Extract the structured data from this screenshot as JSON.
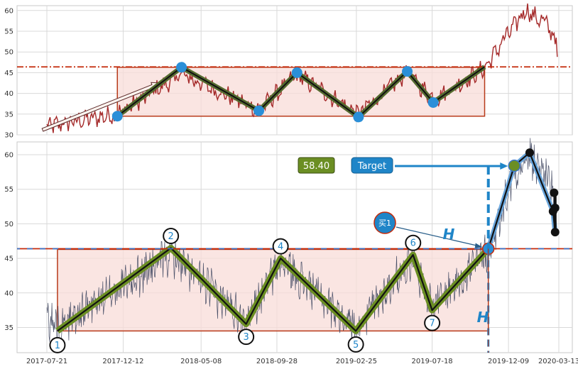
{
  "chart_data": [
    {
      "type": "line",
      "panel": "top",
      "ylim": [
        30,
        62
      ],
      "y_ticks": [
        30,
        35,
        40,
        45,
        50,
        55,
        60
      ],
      "grid": true,
      "resistance_level": 46.4,
      "box": {
        "x_start": "2017-12-01",
        "x_end": "2019-10-25",
        "y_low": 34.5,
        "y_high": 46.3
      },
      "zigzag": [
        {
          "x": "2017-12-01",
          "y": 34.5
        },
        {
          "x": "2018-04-01",
          "y": 46.3
        },
        {
          "x": "2018-08-25",
          "y": 35.8
        },
        {
          "x": "2018-11-05",
          "y": 45.0
        },
        {
          "x": "2019-03-01",
          "y": 34.3
        },
        {
          "x": "2019-06-01",
          "y": 45.3
        },
        {
          "x": "2019-07-20",
          "y": 37.8
        },
        {
          "x": "2019-10-25",
          "y": 46.4
        }
      ],
      "price_series_color": "#a52a2a",
      "line_color": "#556b2f"
    },
    {
      "type": "line",
      "panel": "bottom",
      "ylim": [
        31.5,
        62.5
      ],
      "y_ticks": [
        35,
        40,
        45,
        50,
        55,
        60
      ],
      "x_ticks": [
        "2017-07-21",
        "2017-12-12",
        "2018-05-08",
        "2018-09-28",
        "2019-02-25",
        "2019-07-18",
        "2019-12-09",
        "2020-03-13"
      ],
      "grid": true,
      "resistance_level": 46.4,
      "box": {
        "x_start": "2017-08-10",
        "x_end": "2019-11-01",
        "y_low": 34.5,
        "y_high": 46.3
      },
      "zigzag": [
        {
          "label": "1",
          "x": "2017-08-10",
          "y": 34.5
        },
        {
          "label": "2",
          "x": "2018-03-12",
          "y": 46.5
        },
        {
          "label": "3",
          "x": "2018-08-01",
          "y": 35.5
        },
        {
          "label": "4",
          "x": "2018-10-05",
          "y": 45.0
        },
        {
          "label": "5",
          "x": "2019-02-24",
          "y": 34.5
        },
        {
          "label": "6",
          "x": "2019-06-12",
          "y": 45.5
        },
        {
          "label": "7",
          "x": "2019-07-18",
          "y": 37.5
        },
        {
          "label": "",
          "x": "2019-11-01",
          "y": 46.4
        }
      ],
      "breakout_path": [
        {
          "x": "2019-11-01",
          "y": 46.4
        },
        {
          "x": "2019-12-20",
          "y": 58.4
        },
        {
          "x": "2020-01-18",
          "y": 60.3
        },
        {
          "x": "2020-03-02",
          "y": 51.8
        },
        {
          "x": "2020-03-06",
          "y": 48.8
        }
      ],
      "extra_points": [
        {
          "x": "2020-03-04",
          "y": 54.5
        },
        {
          "x": "2020-03-06",
          "y": 52.3
        }
      ],
      "target_value": "58.40",
      "target_label": "Target",
      "buy_label": "买1",
      "height_label": "H",
      "colors": {
        "price": "#4a5068",
        "zigzag": "#6b8e23",
        "target_box": "#6b8e23",
        "target_button": "#1f85c8",
        "resistance": "#cc2200",
        "box_fill": "#f8dcd8"
      }
    }
  ]
}
